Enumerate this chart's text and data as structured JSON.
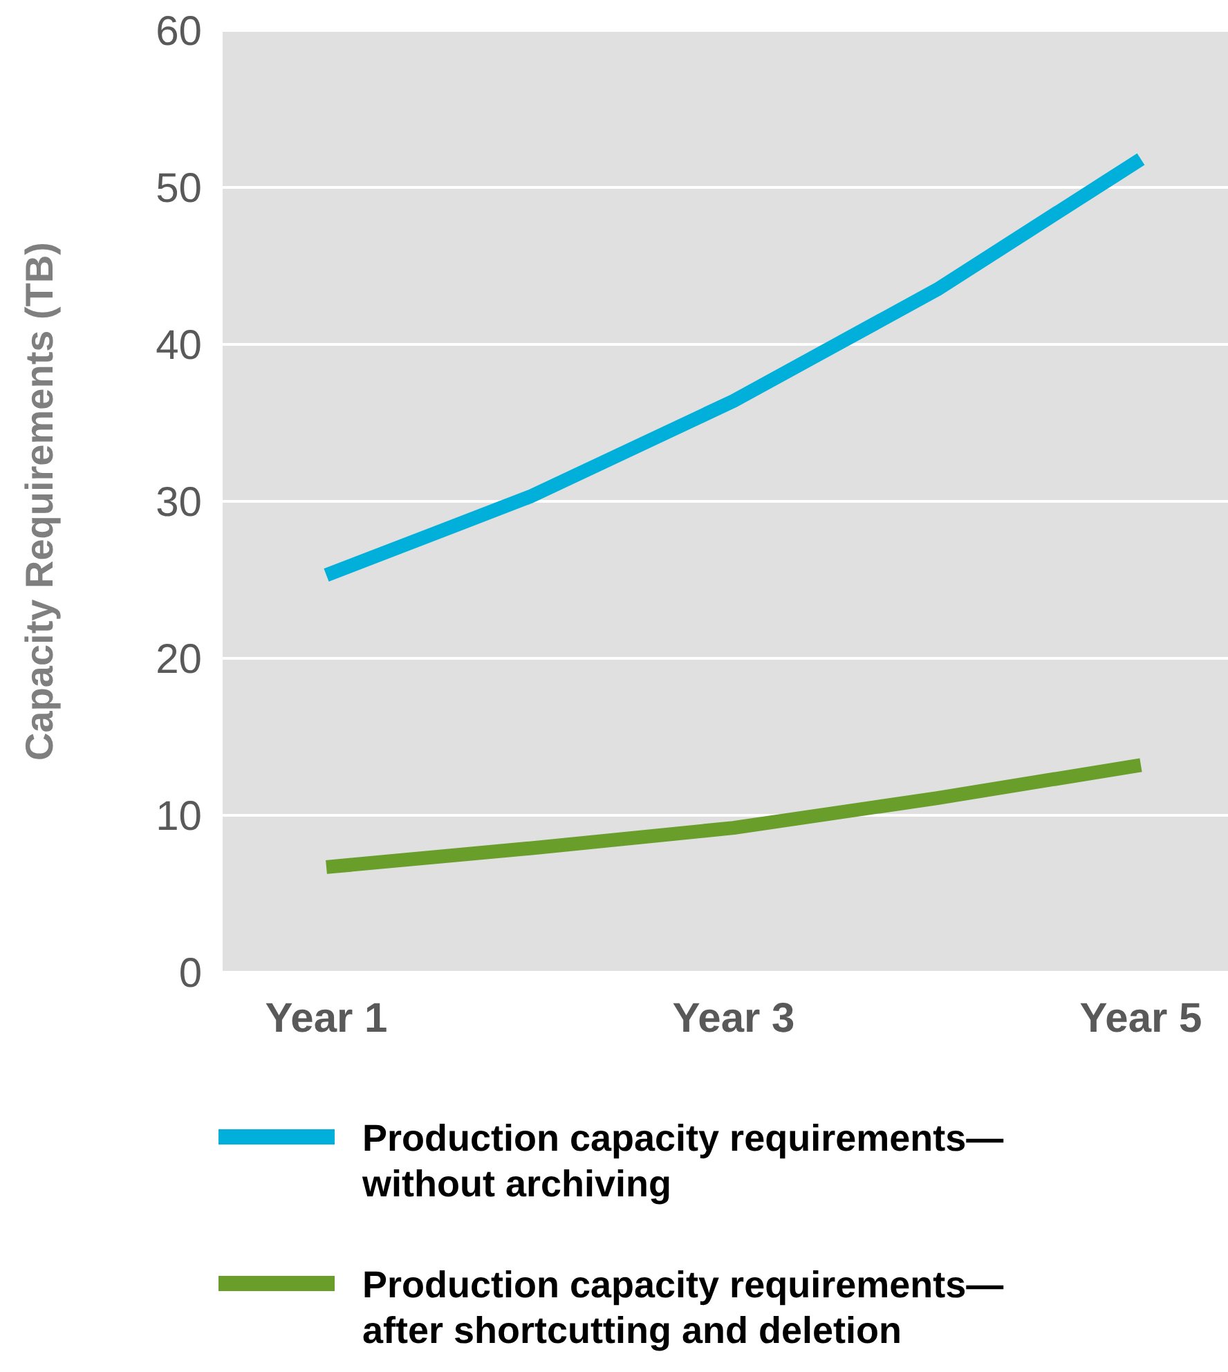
{
  "chart_data": {
    "type": "line",
    "ylabel": "Capacity Requirements (TB)",
    "categories": [
      "Year 1",
      null,
      "Year 3",
      null,
      "Year 5"
    ],
    "series": [
      {
        "name": "Production capacity requirements—without archiving",
        "color": "#00b0da",
        "values": [
          25.3,
          30.3,
          36.4,
          43.5,
          51.8
        ]
      },
      {
        "name": "Production capacity requirements—after shortcutting and deletion",
        "color": "#6a9e2b",
        "values": [
          6.7,
          7.9,
          9.2,
          11.1,
          13.2
        ]
      }
    ],
    "ylim": [
      0,
      60
    ],
    "yticks": [
      0,
      10,
      20,
      30,
      40,
      50,
      60
    ],
    "grid": "y",
    "legend": "bottom",
    "marker": "none",
    "line_style": "solid"
  }
}
